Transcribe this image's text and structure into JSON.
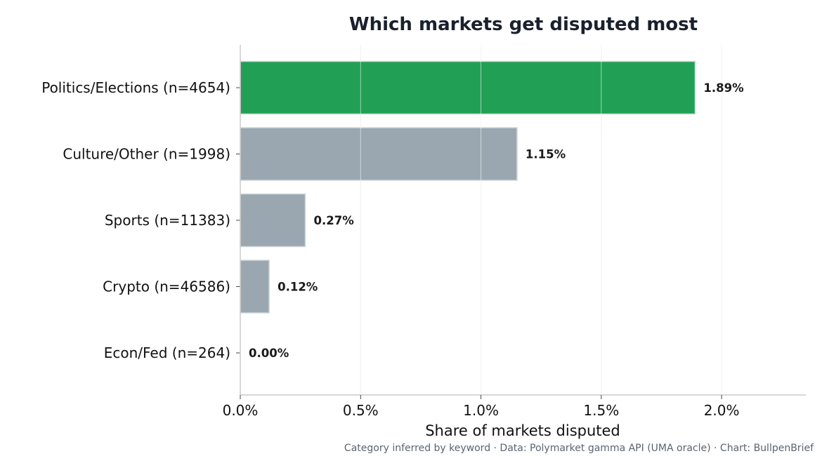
{
  "chart_data": {
    "type": "bar",
    "orientation": "horizontal",
    "title": "Which markets get disputed most",
    "xlabel": "Share of markets disputed",
    "ylabel": "",
    "categories": [
      "Politics/Elections  (n=4654)",
      "Culture/Other  (n=1998)",
      "Sports  (n=11383)",
      "Crypto  (n=46586)",
      "Econ/Fed  (n=264)"
    ],
    "values": [
      1.89,
      1.15,
      0.27,
      0.12,
      0.0
    ],
    "value_labels": [
      "1.89%",
      "1.15%",
      "0.27%",
      "0.12%",
      "0.00%"
    ],
    "xlim": [
      0,
      2.35
    ],
    "xticks": [
      0,
      0.5,
      1.0,
      1.5,
      2.0
    ],
    "xtick_labels": [
      "0.0%",
      "0.5%",
      "1.0%",
      "1.5%",
      "2.0%"
    ],
    "colors": {
      "highlight": "#21a055",
      "default": "#9aa7b0",
      "bar_edge": "#cfd6da",
      "grid": "#e6e6e6"
    },
    "grid": true,
    "legend": "none",
    "footnote": "Category inferred by keyword · Data: Polymarket gamma API (UMA oracle) · Chart: BullpenBrief"
  }
}
